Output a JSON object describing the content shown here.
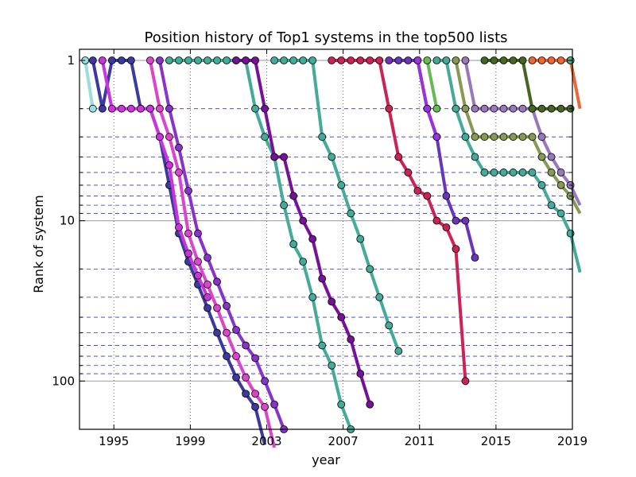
{
  "chart_data": {
    "type": "line",
    "title": "Position history of Top1 systems in the top500 lists",
    "xlabel": "year",
    "ylabel": "Rank of system",
    "xlim": [
      1993.2,
      2019.0
    ],
    "ylim": [
      1,
      200
    ],
    "yscale": "log",
    "y_inverted": true,
    "x_ticks": [
      1995,
      1999,
      2003,
      2007,
      2011,
      2015,
      2019
    ],
    "x_tick_labels": [
      "1995",
      "1999",
      "2003",
      "2007",
      "2011",
      "2015",
      "2019"
    ],
    "y_ticks": [
      1,
      10,
      100
    ],
    "y_tick_labels": [
      "1",
      "10",
      "100"
    ],
    "grid": true,
    "series": [
      {
        "color": "#99dddd",
        "points": [
          [
            1993.5,
            1
          ],
          [
            1993.9,
            2
          ]
        ]
      },
      {
        "color": "#3c3a9e",
        "points": [
          [
            1993.9,
            1
          ],
          [
            1994.4,
            2
          ],
          [
            1994.9,
            1
          ],
          [
            1995.4,
            1
          ],
          [
            1995.9,
            1
          ],
          [
            1996.4,
            2
          ],
          [
            1996.9,
            2
          ],
          [
            1997.4,
            3
          ],
          [
            1997.9,
            6
          ],
          [
            1998.4,
            12
          ],
          [
            1998.9,
            18
          ],
          [
            1999.4,
            25
          ],
          [
            1999.9,
            35
          ],
          [
            2000.4,
            50
          ],
          [
            2000.9,
            70
          ],
          [
            2001.4,
            95
          ],
          [
            2001.9,
            120
          ],
          [
            2002.4,
            145
          ],
          [
            2002.9,
            250
          ]
        ]
      },
      {
        "color": "#cc33dd",
        "points": [
          [
            1994.4,
            1
          ],
          [
            1994.9,
            2
          ],
          [
            1995.4,
            2
          ],
          [
            1995.9,
            2
          ],
          [
            1996.4,
            2
          ],
          [
            1996.9,
            2
          ],
          [
            1997.4,
            3
          ],
          [
            1997.9,
            4.5
          ],
          [
            1998.4,
            11
          ],
          [
            1998.9,
            16
          ],
          [
            1999.4,
            22
          ],
          [
            1999.9,
            30
          ]
        ]
      },
      {
        "color": "#dd44cc",
        "points": [
          [
            1996.9,
            1
          ],
          [
            1997.4,
            2
          ],
          [
            1997.9,
            3
          ],
          [
            1998.4,
            5
          ],
          [
            1998.9,
            12
          ],
          [
            1999.4,
            18
          ],
          [
            1999.9,
            25
          ],
          [
            2000.4,
            35
          ],
          [
            2000.9,
            50
          ],
          [
            2001.4,
            70
          ],
          [
            2001.9,
            95
          ],
          [
            2002.4,
            120
          ],
          [
            2002.9,
            145
          ],
          [
            2003.4,
            260
          ]
        ]
      },
      {
        "color": "#8833cc",
        "points": [
          [
            1997.4,
            1
          ],
          [
            1997.9,
            2
          ],
          [
            1998.4,
            3.5
          ],
          [
            1998.9,
            6.5
          ],
          [
            1999.4,
            12
          ],
          [
            1999.9,
            17
          ],
          [
            2000.4,
            24
          ],
          [
            2000.9,
            34
          ],
          [
            2001.4,
            48
          ],
          [
            2001.9,
            60
          ],
          [
            2002.4,
            72
          ],
          [
            2002.9,
            100
          ],
          [
            2003.4,
            140
          ],
          [
            2003.9,
            200
          ]
        ]
      },
      {
        "color": "#44aa99",
        "points": [
          [
            1997.9,
            1
          ],
          [
            1998.4,
            1
          ],
          [
            1998.9,
            1
          ],
          [
            1999.4,
            1
          ],
          [
            1999.9,
            1
          ],
          [
            2000.4,
            1
          ],
          [
            2000.9,
            1
          ],
          [
            2001.4,
            1
          ],
          [
            2001.9,
            1
          ],
          [
            2002.4,
            2
          ],
          [
            2002.9,
            3
          ],
          [
            2003.4,
            4
          ],
          [
            2003.9,
            8
          ],
          [
            2004.4,
            14
          ],
          [
            2004.9,
            18
          ],
          [
            2005.4,
            30
          ],
          [
            2005.9,
            60
          ],
          [
            2006.4,
            80
          ],
          [
            2006.9,
            140
          ],
          [
            2007.4,
            200
          ]
        ]
      },
      {
        "color": "#771199",
        "points": [
          [
            2001.4,
            1
          ],
          [
            2001.9,
            1
          ],
          [
            2002.4,
            1
          ],
          [
            2002.9,
            2
          ],
          [
            2003.4,
            4
          ],
          [
            2003.9,
            4
          ],
          [
            2004.4,
            7
          ],
          [
            2004.9,
            10
          ],
          [
            2005.4,
            13
          ],
          [
            2005.9,
            23
          ],
          [
            2006.4,
            32
          ],
          [
            2006.9,
            40
          ],
          [
            2007.4,
            55
          ],
          [
            2007.9,
            90
          ],
          [
            2008.4,
            140
          ]
        ]
      },
      {
        "color": "#44aa99",
        "points": [
          [
            2003.4,
            1
          ],
          [
            2003.9,
            1
          ],
          [
            2004.4,
            1
          ],
          [
            2004.9,
            1
          ],
          [
            2005.4,
            1
          ],
          [
            2005.9,
            3
          ],
          [
            2006.4,
            4
          ],
          [
            2006.9,
            6
          ],
          [
            2007.4,
            9
          ],
          [
            2007.9,
            13
          ],
          [
            2008.4,
            20
          ],
          [
            2008.9,
            30
          ],
          [
            2009.4,
            45
          ],
          [
            2009.9,
            65
          ]
        ]
      },
      {
        "color": "#cc2255",
        "points": [
          [
            2006.4,
            1
          ],
          [
            2006.9,
            1
          ],
          [
            2007.4,
            1
          ],
          [
            2007.9,
            1
          ],
          [
            2008.4,
            1
          ],
          [
            2008.9,
            1
          ],
          [
            2009.4,
            2
          ],
          [
            2009.9,
            4
          ],
          [
            2010.4,
            5
          ],
          [
            2010.9,
            6.5
          ],
          [
            2011.4,
            7
          ],
          [
            2011.9,
            10
          ],
          [
            2012.4,
            11
          ],
          [
            2012.9,
            15
          ],
          [
            2013.4,
            100
          ]
        ]
      },
      {
        "color": "#6a35bb",
        "points": [
          [
            2009.4,
            1
          ],
          [
            2009.9,
            1
          ],
          [
            2010.4,
            1
          ],
          [
            2010.9,
            1
          ],
          [
            2011.4,
            2
          ],
          [
            2011.9,
            3
          ],
          [
            2012.4,
            7
          ],
          [
            2012.9,
            10
          ],
          [
            2013.4,
            10
          ],
          [
            2013.9,
            17
          ]
        ]
      },
      {
        "color": "#9933dd",
        "points": [
          [
            2010.9,
            1
          ],
          [
            2011.4,
            2
          ],
          [
            2011.9,
            3
          ]
        ]
      },
      {
        "color": "#66bb55",
        "points": [
          [
            2011.4,
            1
          ],
          [
            2011.9,
            2
          ]
        ]
      },
      {
        "color": "#44aa99",
        "points": [
          [
            2011.9,
            1
          ],
          [
            2012.4,
            1
          ],
          [
            2012.9,
            2
          ],
          [
            2013.4,
            3
          ],
          [
            2013.9,
            4
          ],
          [
            2014.4,
            5
          ],
          [
            2014.9,
            5
          ],
          [
            2015.4,
            5
          ],
          [
            2015.9,
            5
          ],
          [
            2016.4,
            5
          ],
          [
            2016.9,
            5
          ],
          [
            2017.4,
            6
          ],
          [
            2017.9,
            8
          ],
          [
            2018.4,
            9
          ],
          [
            2018.9,
            12
          ],
          [
            2019.4,
            21
          ]
        ]
      },
      {
        "color": "#889955",
        "points": [
          [
            2012.9,
            1
          ],
          [
            2013.4,
            2
          ],
          [
            2013.9,
            3
          ],
          [
            2014.4,
            3
          ],
          [
            2014.9,
            3
          ],
          [
            2015.4,
            3
          ],
          [
            2015.9,
            3
          ],
          [
            2016.4,
            3
          ],
          [
            2016.9,
            3
          ],
          [
            2017.4,
            4
          ],
          [
            2017.9,
            5
          ],
          [
            2018.4,
            6
          ],
          [
            2018.9,
            7
          ],
          [
            2019.4,
            9
          ]
        ]
      },
      {
        "color": "#9977bb",
        "points": [
          [
            2013.4,
            1
          ],
          [
            2013.9,
            2
          ],
          [
            2014.4,
            2
          ],
          [
            2014.9,
            2
          ],
          [
            2015.4,
            2
          ],
          [
            2015.9,
            2
          ],
          [
            2016.4,
            2
          ],
          [
            2016.9,
            2
          ],
          [
            2017.4,
            3
          ],
          [
            2017.9,
            4
          ],
          [
            2018.4,
            5
          ],
          [
            2018.9,
            6
          ],
          [
            2019.4,
            8
          ]
        ]
      },
      {
        "color": "#446622",
        "points": [
          [
            2014.4,
            1
          ],
          [
            2014.9,
            1
          ],
          [
            2015.4,
            1
          ],
          [
            2015.9,
            1
          ],
          [
            2016.4,
            1
          ],
          [
            2016.9,
            2
          ],
          [
            2017.4,
            2
          ],
          [
            2017.9,
            2
          ],
          [
            2018.4,
            2
          ],
          [
            2018.9,
            2
          ]
        ]
      },
      {
        "color": "#ee6633",
        "points": [
          [
            2016.9,
            1
          ],
          [
            2017.4,
            1
          ],
          [
            2017.9,
            1
          ],
          [
            2018.4,
            1
          ],
          [
            2018.9,
            1
          ],
          [
            2019.4,
            2
          ]
        ]
      },
      {
        "color": "#55aa88",
        "points": [
          [
            2018.9,
            1
          ]
        ]
      }
    ]
  }
}
